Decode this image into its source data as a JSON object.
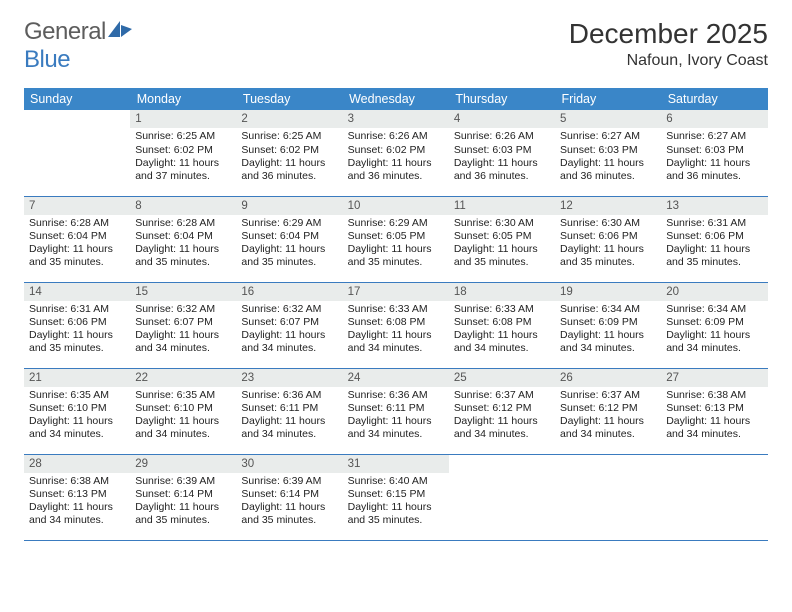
{
  "brand": {
    "word1": "General",
    "word2": "Blue"
  },
  "title": {
    "month": "December 2025",
    "location": "Nafoun, Ivory Coast"
  },
  "colors": {
    "header_bg": "#3a86c8",
    "header_text": "#ffffff",
    "daynum_bg": "#e9eceb",
    "rule": "#3a7bbf",
    "logo_gray": "#5d5d5d",
    "logo_blue": "#3a7bbf"
  },
  "weekdays": [
    "Sunday",
    "Monday",
    "Tuesday",
    "Wednesday",
    "Thursday",
    "Friday",
    "Saturday"
  ],
  "weeks": [
    [
      {
        "n": "",
        "sr": "",
        "ss": "",
        "dl": ""
      },
      {
        "n": "1",
        "sr": "6:25 AM",
        "ss": "6:02 PM",
        "dl": "11 hours and 37 minutes."
      },
      {
        "n": "2",
        "sr": "6:25 AM",
        "ss": "6:02 PM",
        "dl": "11 hours and 36 minutes."
      },
      {
        "n": "3",
        "sr": "6:26 AM",
        "ss": "6:02 PM",
        "dl": "11 hours and 36 minutes."
      },
      {
        "n": "4",
        "sr": "6:26 AM",
        "ss": "6:03 PM",
        "dl": "11 hours and 36 minutes."
      },
      {
        "n": "5",
        "sr": "6:27 AM",
        "ss": "6:03 PM",
        "dl": "11 hours and 36 minutes."
      },
      {
        "n": "6",
        "sr": "6:27 AM",
        "ss": "6:03 PM",
        "dl": "11 hours and 36 minutes."
      }
    ],
    [
      {
        "n": "7",
        "sr": "6:28 AM",
        "ss": "6:04 PM",
        "dl": "11 hours and 35 minutes."
      },
      {
        "n": "8",
        "sr": "6:28 AM",
        "ss": "6:04 PM",
        "dl": "11 hours and 35 minutes."
      },
      {
        "n": "9",
        "sr": "6:29 AM",
        "ss": "6:04 PM",
        "dl": "11 hours and 35 minutes."
      },
      {
        "n": "10",
        "sr": "6:29 AM",
        "ss": "6:05 PM",
        "dl": "11 hours and 35 minutes."
      },
      {
        "n": "11",
        "sr": "6:30 AM",
        "ss": "6:05 PM",
        "dl": "11 hours and 35 minutes."
      },
      {
        "n": "12",
        "sr": "6:30 AM",
        "ss": "6:06 PM",
        "dl": "11 hours and 35 minutes."
      },
      {
        "n": "13",
        "sr": "6:31 AM",
        "ss": "6:06 PM",
        "dl": "11 hours and 35 minutes."
      }
    ],
    [
      {
        "n": "14",
        "sr": "6:31 AM",
        "ss": "6:06 PM",
        "dl": "11 hours and 35 minutes."
      },
      {
        "n": "15",
        "sr": "6:32 AM",
        "ss": "6:07 PM",
        "dl": "11 hours and 34 minutes."
      },
      {
        "n": "16",
        "sr": "6:32 AM",
        "ss": "6:07 PM",
        "dl": "11 hours and 34 minutes."
      },
      {
        "n": "17",
        "sr": "6:33 AM",
        "ss": "6:08 PM",
        "dl": "11 hours and 34 minutes."
      },
      {
        "n": "18",
        "sr": "6:33 AM",
        "ss": "6:08 PM",
        "dl": "11 hours and 34 minutes."
      },
      {
        "n": "19",
        "sr": "6:34 AM",
        "ss": "6:09 PM",
        "dl": "11 hours and 34 minutes."
      },
      {
        "n": "20",
        "sr": "6:34 AM",
        "ss": "6:09 PM",
        "dl": "11 hours and 34 minutes."
      }
    ],
    [
      {
        "n": "21",
        "sr": "6:35 AM",
        "ss": "6:10 PM",
        "dl": "11 hours and 34 minutes."
      },
      {
        "n": "22",
        "sr": "6:35 AM",
        "ss": "6:10 PM",
        "dl": "11 hours and 34 minutes."
      },
      {
        "n": "23",
        "sr": "6:36 AM",
        "ss": "6:11 PM",
        "dl": "11 hours and 34 minutes."
      },
      {
        "n": "24",
        "sr": "6:36 AM",
        "ss": "6:11 PM",
        "dl": "11 hours and 34 minutes."
      },
      {
        "n": "25",
        "sr": "6:37 AM",
        "ss": "6:12 PM",
        "dl": "11 hours and 34 minutes."
      },
      {
        "n": "26",
        "sr": "6:37 AM",
        "ss": "6:12 PM",
        "dl": "11 hours and 34 minutes."
      },
      {
        "n": "27",
        "sr": "6:38 AM",
        "ss": "6:13 PM",
        "dl": "11 hours and 34 minutes."
      }
    ],
    [
      {
        "n": "28",
        "sr": "6:38 AM",
        "ss": "6:13 PM",
        "dl": "11 hours and 34 minutes."
      },
      {
        "n": "29",
        "sr": "6:39 AM",
        "ss": "6:14 PM",
        "dl": "11 hours and 35 minutes."
      },
      {
        "n": "30",
        "sr": "6:39 AM",
        "ss": "6:14 PM",
        "dl": "11 hours and 35 minutes."
      },
      {
        "n": "31",
        "sr": "6:40 AM",
        "ss": "6:15 PM",
        "dl": "11 hours and 35 minutes."
      },
      {
        "n": "",
        "sr": "",
        "ss": "",
        "dl": ""
      },
      {
        "n": "",
        "sr": "",
        "ss": "",
        "dl": ""
      },
      {
        "n": "",
        "sr": "",
        "ss": "",
        "dl": ""
      }
    ]
  ],
  "labels": {
    "sunrise": "Sunrise:",
    "sunset": "Sunset:",
    "daylight": "Daylight:"
  }
}
